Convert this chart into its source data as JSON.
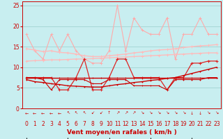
{
  "x": [
    0,
    1,
    2,
    3,
    4,
    5,
    6,
    7,
    8,
    9,
    10,
    11,
    12,
    13,
    14,
    15,
    16,
    17,
    18,
    19,
    20,
    21,
    22,
    23
  ],
  "line_rafales_high": [
    18,
    14,
    12,
    18,
    14,
    18,
    14,
    12,
    11,
    11,
    14,
    25,
    14,
    22,
    19,
    18,
    18,
    22,
    12,
    18,
    18,
    22,
    18,
    18
  ],
  "line_rafales_trend": [
    14.5,
    14.2,
    13.8,
    14.0,
    13.6,
    13.5,
    13.2,
    12.8,
    12.6,
    12.6,
    12.8,
    13.0,
    13.2,
    13.5,
    13.7,
    14.0,
    14.2,
    14.3,
    14.5,
    14.8,
    15.0,
    15.2,
    15.3,
    15.5
  ],
  "line_moy_trend": [
    11.5,
    11.6,
    11.7,
    11.8,
    11.8,
    11.9,
    12.0,
    12.0,
    12.1,
    12.2,
    12.3,
    12.4,
    12.5,
    12.6,
    12.7,
    12.8,
    12.9,
    13.0,
    13.1,
    13.2,
    13.3,
    13.4,
    13.5,
    13.5
  ],
  "line_moy_obs": [
    7.5,
    7.5,
    7.5,
    7.5,
    4.5,
    4.5,
    7.5,
    12,
    4.5,
    4.5,
    7.5,
    12,
    12,
    7.5,
    7.5,
    7.5,
    7.5,
    4.5,
    7.5,
    7.5,
    11,
    11,
    11.5,
    11.5
  ],
  "line_moy_flat": [
    7.5,
    7.5,
    7.5,
    7.5,
    7.5,
    7.5,
    7.5,
    7.5,
    7.5,
    7.5,
    7.5,
    7.5,
    7.5,
    7.5,
    7.5,
    7.5,
    7.5,
    7.5,
    7.5,
    7.5,
    7.5,
    7.5,
    7.5,
    7.5
  ],
  "line_min_obs": [
    7.5,
    7.5,
    7.0,
    4.5,
    7.0,
    7.0,
    7.0,
    7.0,
    6.0,
    6.0,
    7.0,
    7.0,
    7.0,
    5.5,
    5.5,
    5.5,
    5.5,
    4.5,
    7.0,
    7.0,
    7.0,
    7.0,
    7.5,
    7.5
  ],
  "line_min_trend": [
    7.0,
    6.5,
    6.3,
    6.0,
    5.8,
    5.5,
    5.4,
    5.3,
    5.2,
    5.2,
    5.5,
    5.8,
    6.0,
    6.3,
    6.5,
    6.8,
    7.0,
    7.3,
    7.5,
    8.0,
    8.5,
    9.0,
    9.5,
    10.0
  ],
  "color_rafales_high": "#ffaaaa",
  "color_rafales_trend": "#ffbbbb",
  "color_moy_trend": "#ffbbbb",
  "color_moy_obs": "#dd2222",
  "color_moy_flat": "#cc0000",
  "color_min_obs": "#cc0000",
  "color_min_trend": "#cc0000",
  "bg_color": "#c8eef0",
  "grid_color": "#99cccc",
  "xlabel": "Vent moyen/en rafales ( km/h )",
  "ylim": [
    0,
    26
  ],
  "yticks": [
    0,
    5,
    10,
    15,
    20,
    25
  ],
  "xticks": [
    0,
    1,
    2,
    3,
    4,
    5,
    6,
    7,
    8,
    9,
    10,
    11,
    12,
    13,
    14,
    15,
    16,
    17,
    18,
    19,
    20,
    21,
    22,
    23
  ],
  "xlabel_fontsize": 6.5,
  "tick_fontsize": 5.5,
  "arrow_symbols": [
    "←",
    "←",
    "←",
    "←",
    "←",
    "↖",
    "↖",
    "↖",
    "↙",
    "↙",
    "↑",
    "↗",
    "↗",
    "↗",
    "↘",
    "↘",
    "↘",
    "↘",
    "↘",
    "↘",
    "↓",
    "↓",
    "↘",
    "↘"
  ]
}
